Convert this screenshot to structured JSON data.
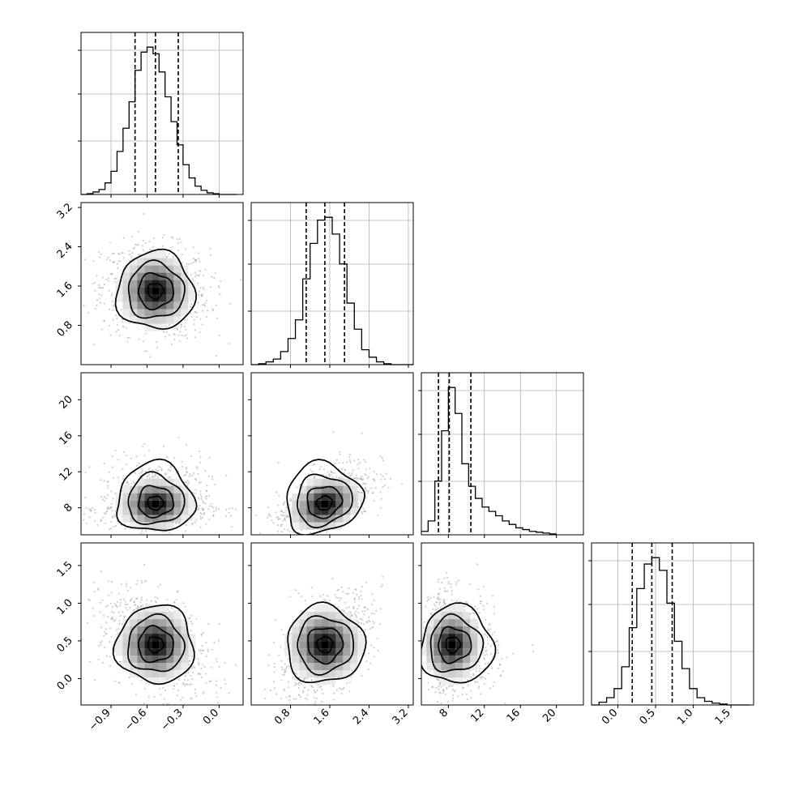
{
  "chart_data": {
    "type": "corner",
    "description_of_grid": "4x4 lower-triangular corner plot of posterior samples",
    "parameters": [
      {
        "index": 0,
        "range": [
          -1.15,
          0.2
        ],
        "ticks": [
          -0.9,
          -0.6,
          -0.3,
          0.0
        ],
        "tick_labels": [
          "−0.9",
          "−0.6",
          "−0.3",
          "0.0"
        ],
        "quantiles": [
          -0.7,
          -0.53,
          -0.34
        ],
        "median": -0.53,
        "sigma": 0.18
      },
      {
        "index": 1,
        "range": [
          0.0,
          3.3
        ],
        "ticks": [
          0.8,
          1.6,
          2.4,
          3.2
        ],
        "tick_labels": [
          "0.8",
          "1.6",
          "2.4",
          "3.2"
        ],
        "quantiles": [
          1.12,
          1.5,
          1.9
        ],
        "median": 1.5,
        "sigma": 0.38
      },
      {
        "index": 2,
        "range": [
          5.0,
          23.0
        ],
        "ticks": [
          8,
          12,
          16,
          20
        ],
        "tick_labels": [
          "8",
          "12",
          "16",
          "20"
        ],
        "quantiles": [
          6.9,
          8.1,
          10.5
        ],
        "median": 8.1,
        "sigma": 1.8
      },
      {
        "index": 3,
        "range": [
          -0.35,
          1.8
        ],
        "ticks": [
          0.0,
          0.5,
          1.0,
          1.5
        ],
        "tick_labels": [
          "0.0",
          "0.5",
          "1.0",
          "1.5"
        ],
        "quantiles": [
          0.19,
          0.45,
          0.72
        ],
        "median": 0.45,
        "sigma": 0.27
      }
    ],
    "histograms": [
      {
        "param": 0,
        "bin_edges": [
          -1.15,
          -1.1,
          -1.05,
          -1.0,
          -0.95,
          -0.9,
          -0.85,
          -0.8,
          -0.75,
          -0.7,
          -0.65,
          -0.6,
          -0.55,
          -0.5,
          -0.45,
          -0.4,
          -0.35,
          -0.3,
          -0.25,
          -0.2,
          -0.15,
          -0.1,
          -0.05,
          0.0,
          0.05,
          0.1,
          0.15
        ],
        "counts": [
          0,
          1,
          3,
          6,
          14,
          28,
          52,
          80,
          112,
          150,
          172,
          178,
          170,
          148,
          118,
          88,
          60,
          36,
          20,
          10,
          5,
          2,
          1,
          0,
          0,
          0
        ]
      },
      {
        "param": 1,
        "bin_edges": [
          0.0,
          0.15,
          0.3,
          0.45,
          0.6,
          0.75,
          0.9,
          1.05,
          1.2,
          1.35,
          1.5,
          1.65,
          1.8,
          1.95,
          2.1,
          2.25,
          2.4,
          2.55,
          2.7,
          2.85,
          3.0,
          3.15,
          3.3
        ],
        "counts": [
          0,
          1,
          3,
          6,
          14,
          28,
          48,
          92,
          130,
          155,
          158,
          140,
          108,
          66,
          38,
          16,
          8,
          3,
          1,
          0,
          0,
          0
        ]
      },
      {
        "param": 2,
        "bin_edges": [
          5.0,
          5.75,
          6.5,
          7.25,
          8.0,
          8.75,
          9.5,
          10.25,
          11.0,
          11.75,
          12.5,
          13.25,
          14.0,
          14.75,
          15.5,
          16.25,
          17.0,
          17.75,
          18.5,
          19.25,
          20.0
        ],
        "counts": [
          4,
          16,
          62,
          120,
          170,
          140,
          82,
          56,
          42,
          32,
          27,
          22,
          16,
          12,
          8,
          6,
          4,
          3,
          2,
          1
        ]
      },
      {
        "param": 3,
        "bin_edges": [
          -0.35,
          -0.25,
          -0.15,
          -0.05,
          0.05,
          0.15,
          0.25,
          0.35,
          0.45,
          0.55,
          0.65,
          0.75,
          0.85,
          0.95,
          1.05,
          1.15,
          1.25,
          1.35,
          1.45,
          1.55,
          1.65,
          1.75
        ],
        "counts": [
          0,
          3,
          8,
          18,
          42,
          85,
          128,
          155,
          162,
          148,
          112,
          70,
          40,
          18,
          8,
          4,
          2,
          1,
          0,
          0,
          0
        ]
      }
    ],
    "scatter_panels": [
      {
        "row": 1,
        "col": 0,
        "correlation": -0.1
      },
      {
        "row": 2,
        "col": 0,
        "correlation": 0.05
      },
      {
        "row": 2,
        "col": 1,
        "correlation": 0.55
      },
      {
        "row": 3,
        "col": 0,
        "correlation": -0.45
      },
      {
        "row": 3,
        "col": 1,
        "correlation": 0.45
      },
      {
        "row": 3,
        "col": 2,
        "correlation": -0.1
      }
    ],
    "grid": true,
    "line_color": "#000000",
    "point_color": "#9a9a9a"
  }
}
